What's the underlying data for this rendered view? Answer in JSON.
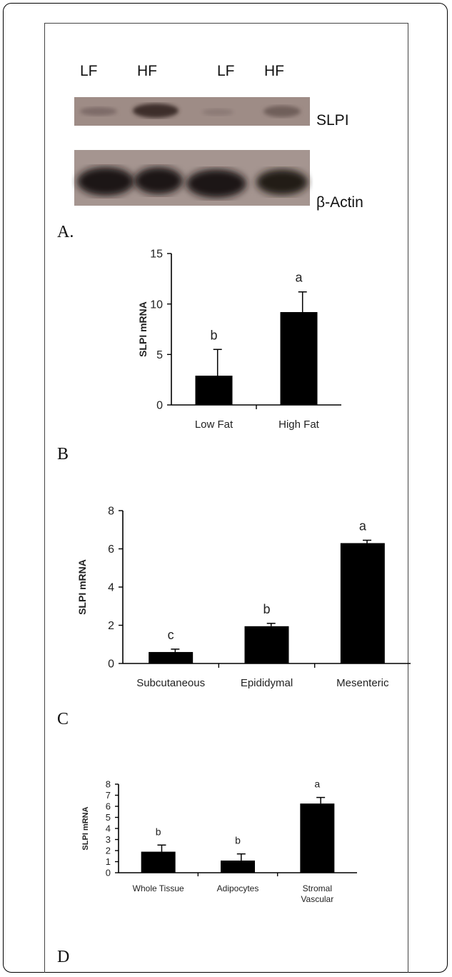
{
  "figure": {
    "blot": {
      "lane_labels": [
        "LF",
        "HF",
        "LF",
        "HF"
      ],
      "protein_labels": [
        "SLPI",
        "β-Actin"
      ],
      "panel_letter": "A."
    },
    "panel_letters": [
      "B",
      "C",
      "D"
    ]
  },
  "chart_data": [
    {
      "type": "bar",
      "panel": "B",
      "categories": [
        "Low Fat",
        "High Fat"
      ],
      "values": [
        2.9,
        9.2
      ],
      "errors": [
        2.6,
        2.0
      ],
      "significance_letters": [
        "b",
        "a"
      ],
      "ylabel": "SLPI mRNA",
      "xlabel": "",
      "ylim": [
        0,
        15
      ],
      "yticks": [
        0,
        5,
        10,
        15
      ],
      "bar_color": "#000000"
    },
    {
      "type": "bar",
      "panel": "C",
      "categories": [
        "Subcutaneous",
        "Epididymal",
        "Mesenteric"
      ],
      "values": [
        0.6,
        1.95,
        6.3
      ],
      "errors": [
        0.15,
        0.15,
        0.15
      ],
      "significance_letters": [
        "c",
        "b",
        "a"
      ],
      "ylabel": "SLPI mRNA",
      "xlabel": "",
      "ylim": [
        0,
        8
      ],
      "yticks": [
        0,
        2,
        4,
        6,
        8
      ],
      "bar_color": "#000000"
    },
    {
      "type": "bar",
      "panel": "D",
      "categories": [
        "Whole Tissue",
        "Adipocytes",
        "Stromal Vascular"
      ],
      "values": [
        1.9,
        1.1,
        6.25
      ],
      "errors": [
        0.6,
        0.6,
        0.55
      ],
      "significance_letters": [
        "b",
        "b",
        "a"
      ],
      "ylabel": "SLPI mRNA",
      "xlabel": "",
      "ylim": [
        0,
        8
      ],
      "yticks": [
        0,
        1,
        2,
        3,
        4,
        5,
        6,
        7,
        8
      ],
      "bar_color": "#000000"
    }
  ]
}
